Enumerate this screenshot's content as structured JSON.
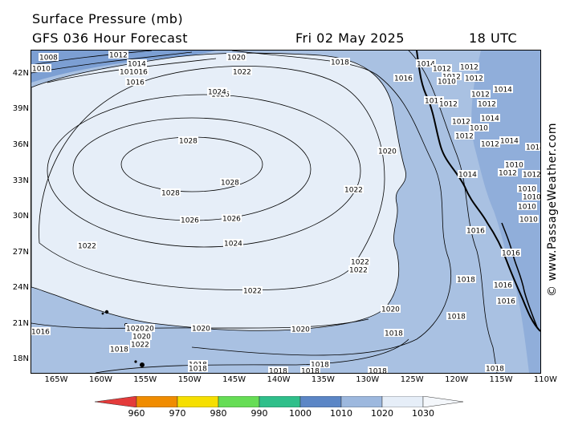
{
  "header": {
    "title": "Surface Pressure (mb)",
    "model_line": "GFS 036 Hour Forecast",
    "date": "Fri 02 May 2025",
    "time": "18 UTC"
  },
  "watermark": "© www.PassageWeather.com",
  "axes": {
    "lat_ticks": [
      "42N",
      "39N",
      "36N",
      "33N",
      "30N",
      "27N",
      "24N",
      "21N",
      "18N"
    ],
    "lon_ticks": [
      "165W",
      "160W",
      "155W",
      "150W",
      "145W",
      "140W",
      "135W",
      "130W",
      "125W",
      "120W",
      "115W",
      "110W"
    ],
    "lat_range": [
      17,
      44
    ],
    "lon_range": [
      -168,
      -110
    ]
  },
  "colorbar": {
    "labels": [
      "960",
      "970",
      "980",
      "990",
      "1000",
      "1010",
      "1020",
      "1030"
    ],
    "colors": [
      "#e43b3b",
      "#f08c00",
      "#f6df00",
      "#66dd55",
      "#2fbf8a",
      "#5b86c6",
      "#9db8de",
      "#e6eef8"
    ]
  },
  "map_colors": {
    "ocean_1010_1020": "#a9c1e2",
    "ocean_above_1020": "#e6eef8",
    "low_band": "#7c9fd3",
    "land_outline": "#000000"
  },
  "isobar_labels": {
    "high_center": [
      "1028",
      "1028",
      "1028",
      "1026",
      "1026",
      "1026"
    ],
    "ring_1024": [
      "1024",
      "1024"
    ],
    "ring_1022": [
      "1022",
      "1022",
      "1022",
      "1022",
      "1022",
      "1022"
    ],
    "ring_1020": [
      "1020",
      "1020",
      "1020",
      "1020",
      "1020",
      "1020"
    ],
    "ring_1018": [
      "1018",
      "1018",
      "1018",
      "1018",
      "1018",
      "1018",
      "1018"
    ],
    "ring_1016": [
      "1016",
      "1016",
      "1016",
      "1016",
      "1016",
      "1016",
      "1016",
      "1016"
    ],
    "nw_corner": [
      "1008",
      "1010",
      "1012",
      "1014",
      "1016"
    ],
    "coast_cluster": [
      "1014",
      "1012",
      "1012",
      "1010",
      "1012",
      "1012",
      "1014",
      "1012",
      "1014",
      "1012",
      "1012",
      "1014",
      "1012",
      "1010",
      "1012",
      "1014",
      "1012",
      "1014",
      "1012",
      "1010",
      "1010",
      "1012",
      "1014",
      "1010",
      "1010",
      "1010"
    ],
    "hawaii": [
      "1020",
      "1020",
      "1022",
      "1018"
    ],
    "south": [
      "1018",
      "1018",
      "1018",
      "1018"
    ]
  }
}
